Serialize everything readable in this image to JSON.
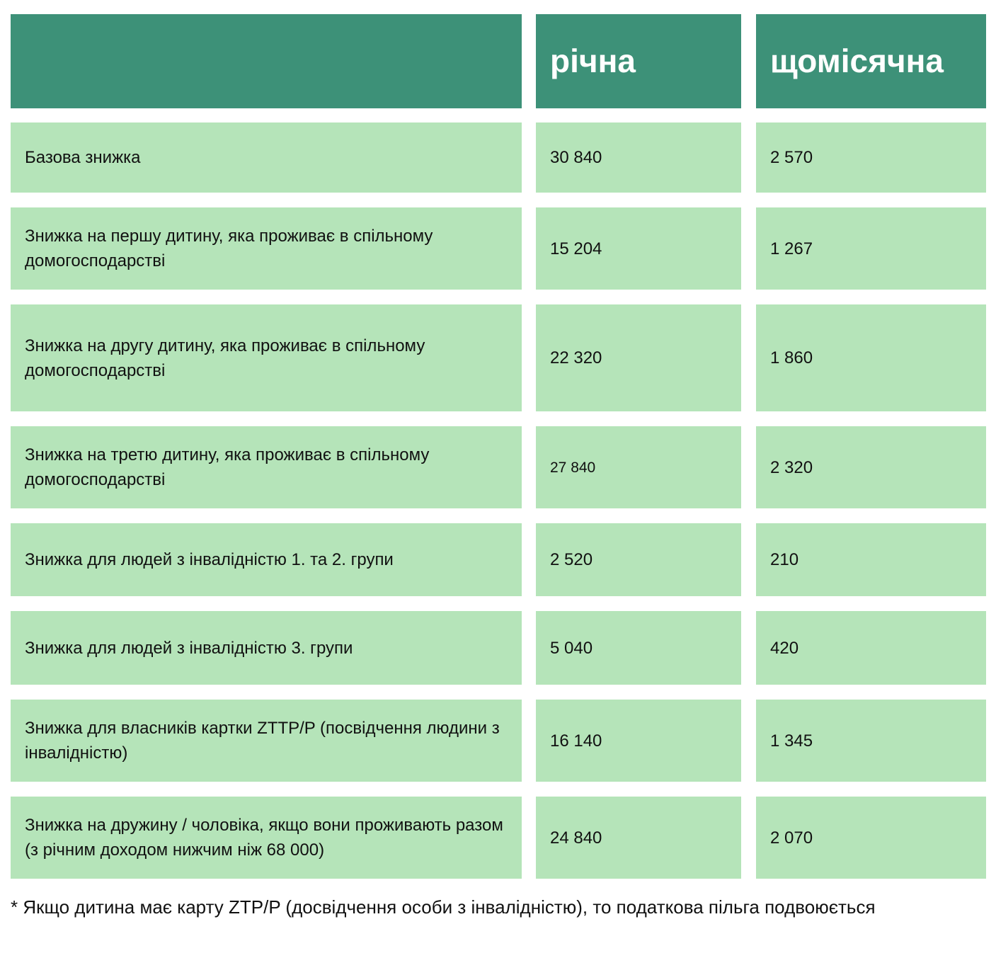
{
  "header": {
    "col1": "",
    "col2": "річна",
    "col3": "щомісячна"
  },
  "rows": [
    {
      "label": "Базова знижка",
      "annual": "30 840",
      "monthly": "2 570"
    },
    {
      "label": "Знижка на першу дитину, яка проживає в спільному домогосподарстві",
      "annual": "15 204",
      "monthly": "1 267"
    },
    {
      "label": "Знижка на другу дитину, яка проживає в спільному домогосподарстві",
      "annual": "22 320",
      "monthly": "1 860"
    },
    {
      "label": "Знижка на третю дитину, яка проживає в спільному домогосподарстві",
      "annual": "27 840",
      "monthly": "2 320"
    },
    {
      "label": "Знижка для людей з інвалідністю 1. та 2. групи",
      "annual": "2 520",
      "monthly": "210"
    },
    {
      "label": "Знижка для людей з інвалідністю 3. групи",
      "annual": "5 040",
      "monthly": "420"
    },
    {
      "label": "Знижка для власників картки ZTTP/P (посвідчення людини з інвалідністю)",
      "annual": "16 140",
      "monthly": "1 345"
    },
    {
      "label": "Знижка на дружину / чоловіка, якщо вони проживають разом (з річним доходом нижчим ніж 68 000)",
      "annual": "24 840",
      "monthly": "2 070"
    }
  ],
  "footnote": "* Якщо дитина має карту ZTP/P (досвідчення особи з інвалідністю), то податкова пільга подвоюється",
  "colors": {
    "header": "#3d9178",
    "cell": "#b5e4b9"
  }
}
